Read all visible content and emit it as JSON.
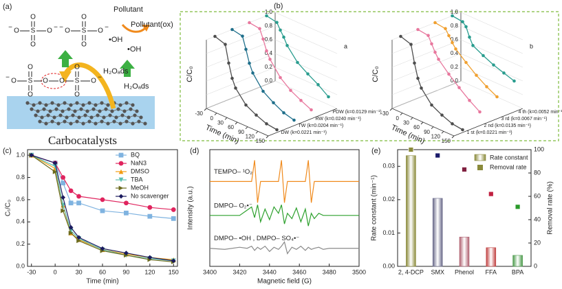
{
  "panel_labels": [
    "(a)",
    "(b)",
    "(c)",
    "(d)",
    "(e)"
  ],
  "diagram": {
    "title": "Carbocatalysts",
    "pollutant": "Pollutant",
    "pollutant_ox": "Pollutant(ox)",
    "radical": "•OH",
    "water": "H₂Oₐds",
    "oxygen": "O",
    "sulfur": "S",
    "charge": "−"
  },
  "chart_data": [
    {
      "type": "line3d",
      "label": "a",
      "xlabel": "Time (min)",
      "ylabel": "C/C₀",
      "x": [
        -30,
        0,
        10,
        20,
        30,
        60,
        90,
        120,
        150
      ],
      "xlim": [
        -30,
        150
      ],
      "xticks": [
        -30,
        0,
        30,
        60,
        90,
        120,
        150
      ],
      "ylim": [
        0,
        1
      ],
      "yticks": [
        {
          "value": 0,
          "label": "0.0"
        },
        {
          "value": 0.2,
          "label": "0.2"
        },
        {
          "value": 0.4,
          "label": "0.4"
        },
        {
          "value": 0.6,
          "label": "0.6"
        },
        {
          "value": 0.8,
          "label": "0.8"
        },
        {
          "value": 1,
          "label": "1.0"
        }
      ],
      "series": [
        {
          "name": "DW (k=0.0221 min⁻¹)",
          "color": "#4d4d4d",
          "values": [
            1.0,
            0.95,
            0.7,
            0.5,
            0.38,
            0.2,
            0.12,
            0.06,
            0.04
          ]
        },
        {
          "name": "TW (k=0.0204 min⁻¹)",
          "color": "#1f6f8b",
          "values": [
            1.0,
            0.97,
            0.8,
            0.62,
            0.5,
            0.3,
            0.2,
            0.12,
            0.08
          ]
        },
        {
          "name": "RW (k=0.0240 min⁻¹)",
          "color": "#e8789e",
          "values": [
            1.0,
            0.98,
            0.85,
            0.7,
            0.6,
            0.4,
            0.28,
            0.2,
            0.13
          ]
        },
        {
          "name": "PDW (k=0.0129 min⁻¹)",
          "color": "#2a9d8f",
          "values": [
            1.0,
            0.97,
            0.88,
            0.8,
            0.7,
            0.52,
            0.42,
            0.33,
            0.22
          ]
        }
      ]
    },
    {
      "type": "line3d",
      "label": "b",
      "xlabel": "Time (min)",
      "ylabel": "C/C₀",
      "x": [
        -30,
        0,
        10,
        20,
        30,
        60,
        90,
        120,
        150
      ],
      "xlim": [
        -30,
        150
      ],
      "xticks": [
        -30,
        0,
        30,
        60,
        90,
        120,
        150
      ],
      "ylim": [
        0,
        1
      ],
      "yticks": [
        {
          "value": 0,
          "label": "0.0"
        },
        {
          "value": 0.2,
          "label": "0.2"
        },
        {
          "value": 0.4,
          "label": "0.4"
        },
        {
          "value": 0.6,
          "label": "0.6"
        },
        {
          "value": 0.8,
          "label": "0.8"
        },
        {
          "value": 1,
          "label": "1.0"
        }
      ],
      "series": [
        {
          "name": "1 st (k=0.0221 min⁻¹)",
          "color": "#4d4d4d",
          "values": [
            1.0,
            0.95,
            0.7,
            0.5,
            0.38,
            0.2,
            0.12,
            0.06,
            0.04
          ]
        },
        {
          "name": "2 nd (k=0.0135 min⁻¹)",
          "color": "#e8789e",
          "values": [
            1.0,
            0.98,
            0.88,
            0.78,
            0.7,
            0.55,
            0.42,
            0.3,
            0.2
          ]
        },
        {
          "name": "3 rd (k=0.0067 min⁻¹)",
          "color": "#f0a030",
          "values": [
            1.0,
            0.98,
            0.9,
            0.82,
            0.75,
            0.62,
            0.5,
            0.4,
            0.32
          ]
        },
        {
          "name": "4 th (k=0.0052 min⁻¹)",
          "color": "#2a9d8f",
          "values": [
            1.0,
            0.98,
            0.93,
            0.8,
            0.7,
            0.62,
            0.55,
            0.5,
            0.45
          ]
        }
      ]
    },
    {
      "type": "line",
      "xlabel": "Time (min)",
      "ylabel": "Cₜ/C₀",
      "legend": "upper right",
      "x": [
        -30,
        0,
        10,
        20,
        30,
        60,
        90,
        120,
        150
      ],
      "xlim": [
        -35,
        155
      ],
      "xticks": [
        -30,
        0,
        30,
        60,
        90,
        120,
        150
      ],
      "ylim": [
        0,
        1.05
      ],
      "yticks": [
        {
          "value": 0,
          "label": "0.0"
        },
        {
          "value": 0.2,
          "label": "0.2"
        },
        {
          "value": 0.4,
          "label": "0.4"
        },
        {
          "value": 0.6,
          "label": "0.6"
        },
        {
          "value": 0.8,
          "label": "0.8"
        },
        {
          "value": 1,
          "label": "1.0"
        }
      ],
      "series": [
        {
          "name": "BQ",
          "color": "#7fb3e0",
          "marker": "square",
          "values": [
            1.0,
            0.93,
            0.75,
            0.57,
            0.57,
            0.5,
            0.48,
            0.45,
            0.43
          ]
        },
        {
          "name": "NaN3",
          "color": "#e0245e",
          "marker": "circle",
          "values": [
            1.0,
            0.93,
            0.8,
            0.68,
            0.63,
            0.6,
            0.57,
            0.53,
            0.51
          ]
        },
        {
          "name": "DMSO",
          "color": "#f39c12",
          "marker": "triangle-up",
          "values": [
            1.0,
            0.88,
            0.55,
            0.3,
            0.24,
            0.15,
            0.11,
            0.08,
            0.06
          ]
        },
        {
          "name": "TBA",
          "color": "#5bbfb0",
          "marker": "triangle-down",
          "values": [
            1.0,
            0.9,
            0.55,
            0.32,
            0.25,
            0.15,
            0.1,
            0.07,
            0.05
          ]
        },
        {
          "name": "MeOH",
          "color": "#6b6b1e",
          "marker": "triangle-right",
          "values": [
            1.0,
            0.85,
            0.5,
            0.3,
            0.23,
            0.14,
            0.1,
            0.06,
            0.04
          ]
        },
        {
          "name": "No scavenger",
          "color": "#1a1a5e",
          "marker": "diamond",
          "values": [
            1.0,
            0.93,
            0.62,
            0.35,
            0.26,
            0.16,
            0.12,
            0.08,
            0.05
          ]
        }
      ]
    },
    {
      "type": "line",
      "xlabel": "Magnetic field (G)",
      "ylabel": "Intensity (a.u.)",
      "x": [
        3400,
        3410,
        3420,
        3425,
        3428,
        3430,
        3432,
        3434,
        3437,
        3440,
        3443,
        3446,
        3448,
        3450,
        3452,
        3455,
        3458,
        3461,
        3464,
        3466,
        3468,
        3470,
        3473,
        3476,
        3480,
        3490,
        3500
      ],
      "xlim": [
        3400,
        3500
      ],
      "xticks": [
        3400,
        3420,
        3440,
        3460,
        3480,
        3500
      ],
      "ylim": [
        0,
        11
      ],
      "series": [
        {
          "name": "TEMPO– ¹O₂",
          "color": "#f08a1c",
          "values": [
            8,
            8,
            8,
            8,
            8,
            10,
            6,
            8,
            8,
            8,
            8,
            8,
            10,
            6,
            8,
            8,
            8,
            8,
            8,
            10,
            6,
            8,
            8,
            8,
            8,
            8,
            8
          ]
        },
        {
          "name": "DMPO– O₂•⁻",
          "color": "#2ca02c",
          "values": [
            4.8,
            4.8,
            4.8,
            5.3,
            5.6,
            4.6,
            5.8,
            4.2,
            5.4,
            4.4,
            5.6,
            5.0,
            5.8,
            4.0,
            5.0,
            4.5,
            5.5,
            4.2,
            5.4,
            3.8,
            5.0,
            4.5,
            5.0,
            4.8,
            4.8,
            4.8,
            4.8
          ]
        },
        {
          "name": "DMPO– •OH , DMPO– SO₄•⁻",
          "color": "#8a8a8a",
          "values": [
            1.7,
            1.6,
            1.8,
            1.7,
            1.9,
            1.5,
            1.8,
            1.6,
            1.9,
            1.4,
            1.8,
            1.6,
            1.9,
            2.3,
            1.2,
            1.8,
            1.6,
            1.9,
            1.5,
            1.8,
            1.6,
            1.7,
            1.8,
            1.6,
            1.7,
            1.7,
            1.7
          ]
        }
      ]
    },
    {
      "type": "bar",
      "ylabel": "Rate constant (min⁻¹)",
      "y2label": "Removal rate (%)",
      "legend": "upper right",
      "categories": [
        "2, 4-DCP",
        "SMX",
        "Phenol",
        "FFA",
        "BPA"
      ],
      "ylim": [
        0,
        0.035
      ],
      "yticks": [
        {
          "value": 0,
          "label": "0.00"
        },
        {
          "value": 0.01,
          "label": "0.01"
        },
        {
          "value": 0.02,
          "label": "0.02"
        },
        {
          "value": 0.03,
          "label": "0.03"
        }
      ],
      "y2lim": [
        0,
        100
      ],
      "y2ticks": [
        0,
        20,
        40,
        60,
        80,
        100
      ],
      "series": [
        {
          "name": "Rate constant",
          "color": "#8a8a3a",
          "colors": [
            "#8a8a3a",
            "#6a6a8a",
            "#b06070",
            "#c04040",
            "#4a9a4a"
          ],
          "values": [
            0.0332,
            0.0204,
            0.0088,
            0.0056,
            0.0033
          ]
        },
        {
          "name": "Removal rate",
          "type": "scatter",
          "axis": "y2",
          "color": "#8a8a3a",
          "colors": [
            "#8a8a3a",
            "#1a1a6a",
            "#802040",
            "#c02040",
            "#2a9a2a"
          ],
          "values": [
            100,
            95,
            83,
            62,
            51
          ]
        }
      ]
    }
  ]
}
